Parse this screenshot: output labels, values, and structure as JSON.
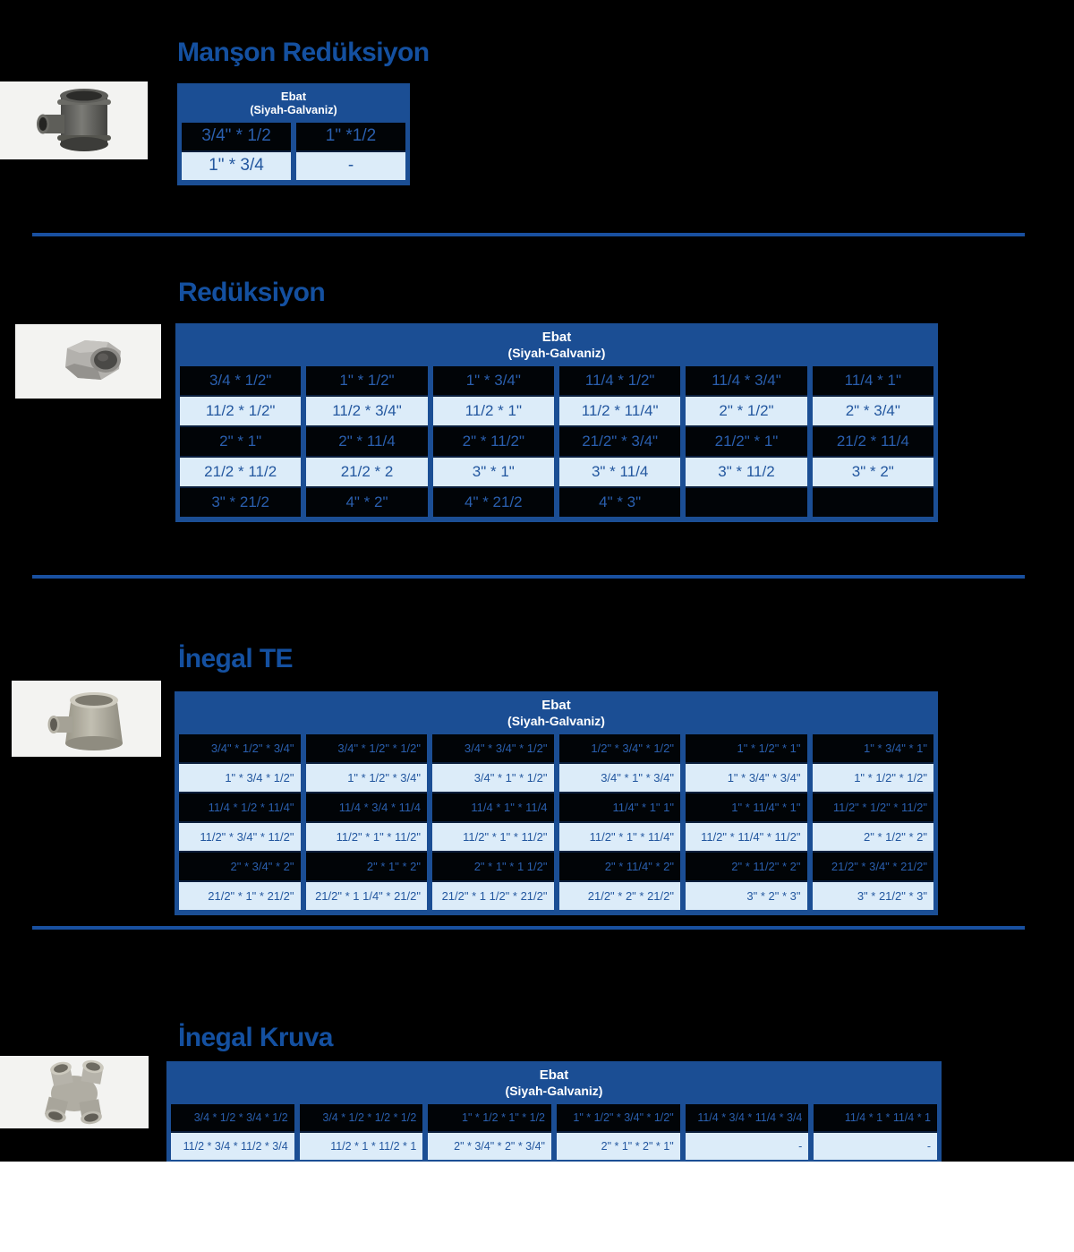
{
  "page": {
    "background": "#000000",
    "footer_background": "#ffffff"
  },
  "colors": {
    "title_blue": "#1450a0",
    "table_frame_blue": "#1b4e94",
    "header_text": "#ffffff",
    "dark_cell_bg": "#010407",
    "dark_cell_text": "#2a5fae",
    "light_cell_bg": "#dcecf9",
    "light_cell_text": "#23579f",
    "divider_blue": "#1950a0"
  },
  "table_header": {
    "line1": "Ebat",
    "line2": "(Siyah-Galvaniz)"
  },
  "sections": [
    {
      "title": "Manşon Redüksiyon",
      "image": "reducing-socket-photo",
      "columns": 2,
      "rows": [
        [
          "3/4\" * 1/2",
          "1\" *1/2"
        ],
        [
          "1\" * 3/4",
          "-"
        ]
      ]
    },
    {
      "title": "Redüksiyon",
      "image": "hex-bushing-photo",
      "columns": 6,
      "rows": [
        [
          "3/4 * 1/2\"",
          "1\" * 1/2\"",
          "1\" * 3/4\"",
          "11/4 * 1/2\"",
          "11/4 * 3/4\"",
          "11/4 * 1\""
        ],
        [
          "11/2 * 1/2\"",
          "11/2 * 3/4\"",
          "11/2 * 1\"",
          "11/2 * 11/4\"",
          "2\" * 1/2\"",
          "2\" * 3/4\""
        ],
        [
          "2\" * 1\"",
          "2\" * 11/4",
          "2\" * 11/2\"",
          "21/2\" * 3/4\"",
          "21/2\" * 1\"",
          "21/2 * 11/4"
        ],
        [
          "21/2 * 11/2",
          "21/2 * 2",
          "3\" * 1\"",
          "3\" * 11/4",
          "3\" * 11/2",
          "3\" * 2\""
        ],
        [
          "3\" * 21/2",
          "4\" * 2\"",
          "4\" * 21/2",
          "4\" * 3\"",
          "",
          ""
        ]
      ]
    },
    {
      "title": "İnegal TE",
      "image": "reducing-tee-photo",
      "columns": 6,
      "rows": [
        [
          "3/4\" * 1/2\" * 3/4\"",
          "3/4\" * 1/2\" * 1/2\"",
          "3/4\" * 3/4\" * 1/2\"",
          "1/2\" * 3/4\" * 1/2\"",
          "1\" * 1/2\" * 1\"",
          "1\" * 3/4\" * 1\""
        ],
        [
          "1\" * 3/4 * 1/2\"",
          "1\" * 1/2\" * 3/4\"",
          "3/4\" * 1\" * 1/2\"",
          "3/4\" * 1\" * 3/4\"",
          "1\" * 3/4\" * 3/4\"",
          "1\" * 1/2\" * 1/2\""
        ],
        [
          "11/4 * 1/2 * 11/4\"",
          "11/4 * 3/4 * 11/4",
          "11/4 * 1\" * 11/4",
          "11/4\" * 1\" 1\"",
          "1\" * 11/4\" * 1\"",
          "11/2\" * 1/2\" * 11/2\""
        ],
        [
          "11/2\" * 3/4\" * 11/2\"",
          "11/2\" * 1\" * 11/2\"",
          "11/2\" * 1\" * 11/2\"",
          "11/2\" * 1\" * 11/4\"",
          "11/2\" * 11/4\" * 11/2\"",
          "2\" * 1/2\" * 2\""
        ],
        [
          "2\" * 3/4\" * 2\"",
          "2\" * 1\" * 2\"",
          "2\" * 1\" * 1 1/2\"",
          "2\" * 11/4\" * 2\"",
          "2\" * 11/2\" * 2\"",
          "21/2\" * 3/4\" * 21/2\""
        ],
        [
          "21/2\" * 1\" * 21/2\"",
          "21/2\" * 1 1/4\" * 21/2\"",
          "21/2\" * 1 1/2\" * 21/2\"",
          "21/2\" * 2\" * 21/2\"",
          "3\" * 2\" * 3\"",
          "3\" * 21/2\" * 3\""
        ]
      ]
    },
    {
      "title": "İnegal Kruva",
      "image": "cross-fitting-photo",
      "columns": 6,
      "rows": [
        [
          "3/4 * 1/2 * 3/4 * 1/2",
          "3/4 * 1/2 * 1/2 * 1/2",
          "1\" * 1/2 * 1\" * 1/2",
          "1\" * 1/2\" * 3/4\" * 1/2\"",
          "11/4 * 3/4 * 11/4 * 3/4",
          "11/4 * 1 * 11/4 * 1"
        ],
        [
          "11/2 * 3/4 * 11/2 * 3/4",
          "11/2 * 1 * 11/2 * 1",
          "2\" * 3/4\" * 2\" * 3/4\"",
          "2\" * 1\" * 2\" * 1\"",
          "-",
          "-"
        ]
      ]
    }
  ]
}
